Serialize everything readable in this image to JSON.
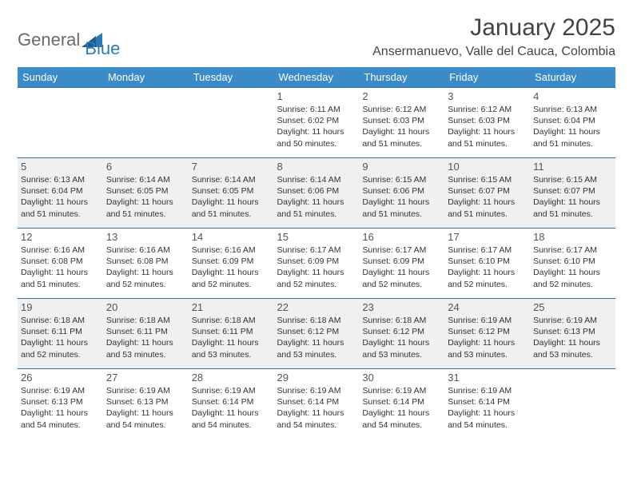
{
  "brand": {
    "part1": "General",
    "part2": "Blue"
  },
  "title": "January 2025",
  "location": "Ansermanuevo, Valle del Cauca, Colombia",
  "colors": {
    "header_bg": "#3b8bc9",
    "header_text": "#ffffff",
    "row_shade": "#f0f0f0",
    "cell_border": "#2f6fa3",
    "brand_gray": "#6a6a6a",
    "brand_blue": "#2a7ab9"
  },
  "dayHeaders": [
    "Sunday",
    "Monday",
    "Tuesday",
    "Wednesday",
    "Thursday",
    "Friday",
    "Saturday"
  ],
  "weeks": [
    {
      "shaded": false,
      "days": [
        null,
        null,
        null,
        {
          "n": "1",
          "sunrise": "6:11 AM",
          "sunset": "6:02 PM",
          "daylight": "11 hours and 50 minutes."
        },
        {
          "n": "2",
          "sunrise": "6:12 AM",
          "sunset": "6:03 PM",
          "daylight": "11 hours and 51 minutes."
        },
        {
          "n": "3",
          "sunrise": "6:12 AM",
          "sunset": "6:03 PM",
          "daylight": "11 hours and 51 minutes."
        },
        {
          "n": "4",
          "sunrise": "6:13 AM",
          "sunset": "6:04 PM",
          "daylight": "11 hours and 51 minutes."
        }
      ]
    },
    {
      "shaded": true,
      "days": [
        {
          "n": "5",
          "sunrise": "6:13 AM",
          "sunset": "6:04 PM",
          "daylight": "11 hours and 51 minutes."
        },
        {
          "n": "6",
          "sunrise": "6:14 AM",
          "sunset": "6:05 PM",
          "daylight": "11 hours and 51 minutes."
        },
        {
          "n": "7",
          "sunrise": "6:14 AM",
          "sunset": "6:05 PM",
          "daylight": "11 hours and 51 minutes."
        },
        {
          "n": "8",
          "sunrise": "6:14 AM",
          "sunset": "6:06 PM",
          "daylight": "11 hours and 51 minutes."
        },
        {
          "n": "9",
          "sunrise": "6:15 AM",
          "sunset": "6:06 PM",
          "daylight": "11 hours and 51 minutes."
        },
        {
          "n": "10",
          "sunrise": "6:15 AM",
          "sunset": "6:07 PM",
          "daylight": "11 hours and 51 minutes."
        },
        {
          "n": "11",
          "sunrise": "6:15 AM",
          "sunset": "6:07 PM",
          "daylight": "11 hours and 51 minutes."
        }
      ]
    },
    {
      "shaded": false,
      "days": [
        {
          "n": "12",
          "sunrise": "6:16 AM",
          "sunset": "6:08 PM",
          "daylight": "11 hours and 51 minutes."
        },
        {
          "n": "13",
          "sunrise": "6:16 AM",
          "sunset": "6:08 PM",
          "daylight": "11 hours and 52 minutes."
        },
        {
          "n": "14",
          "sunrise": "6:16 AM",
          "sunset": "6:09 PM",
          "daylight": "11 hours and 52 minutes."
        },
        {
          "n": "15",
          "sunrise": "6:17 AM",
          "sunset": "6:09 PM",
          "daylight": "11 hours and 52 minutes."
        },
        {
          "n": "16",
          "sunrise": "6:17 AM",
          "sunset": "6:09 PM",
          "daylight": "11 hours and 52 minutes."
        },
        {
          "n": "17",
          "sunrise": "6:17 AM",
          "sunset": "6:10 PM",
          "daylight": "11 hours and 52 minutes."
        },
        {
          "n": "18",
          "sunrise": "6:17 AM",
          "sunset": "6:10 PM",
          "daylight": "11 hours and 52 minutes."
        }
      ]
    },
    {
      "shaded": true,
      "days": [
        {
          "n": "19",
          "sunrise": "6:18 AM",
          "sunset": "6:11 PM",
          "daylight": "11 hours and 52 minutes."
        },
        {
          "n": "20",
          "sunrise": "6:18 AM",
          "sunset": "6:11 PM",
          "daylight": "11 hours and 53 minutes."
        },
        {
          "n": "21",
          "sunrise": "6:18 AM",
          "sunset": "6:11 PM",
          "daylight": "11 hours and 53 minutes."
        },
        {
          "n": "22",
          "sunrise": "6:18 AM",
          "sunset": "6:12 PM",
          "daylight": "11 hours and 53 minutes."
        },
        {
          "n": "23",
          "sunrise": "6:18 AM",
          "sunset": "6:12 PM",
          "daylight": "11 hours and 53 minutes."
        },
        {
          "n": "24",
          "sunrise": "6:19 AM",
          "sunset": "6:12 PM",
          "daylight": "11 hours and 53 minutes."
        },
        {
          "n": "25",
          "sunrise": "6:19 AM",
          "sunset": "6:13 PM",
          "daylight": "11 hours and 53 minutes."
        }
      ]
    },
    {
      "shaded": false,
      "days": [
        {
          "n": "26",
          "sunrise": "6:19 AM",
          "sunset": "6:13 PM",
          "daylight": "11 hours and 54 minutes."
        },
        {
          "n": "27",
          "sunrise": "6:19 AM",
          "sunset": "6:13 PM",
          "daylight": "11 hours and 54 minutes."
        },
        {
          "n": "28",
          "sunrise": "6:19 AM",
          "sunset": "6:14 PM",
          "daylight": "11 hours and 54 minutes."
        },
        {
          "n": "29",
          "sunrise": "6:19 AM",
          "sunset": "6:14 PM",
          "daylight": "11 hours and 54 minutes."
        },
        {
          "n": "30",
          "sunrise": "6:19 AM",
          "sunset": "6:14 PM",
          "daylight": "11 hours and 54 minutes."
        },
        {
          "n": "31",
          "sunrise": "6:19 AM",
          "sunset": "6:14 PM",
          "daylight": "11 hours and 54 minutes."
        },
        null
      ]
    }
  ],
  "labels": {
    "sunrise": "Sunrise:",
    "sunset": "Sunset:",
    "daylight": "Daylight:"
  }
}
